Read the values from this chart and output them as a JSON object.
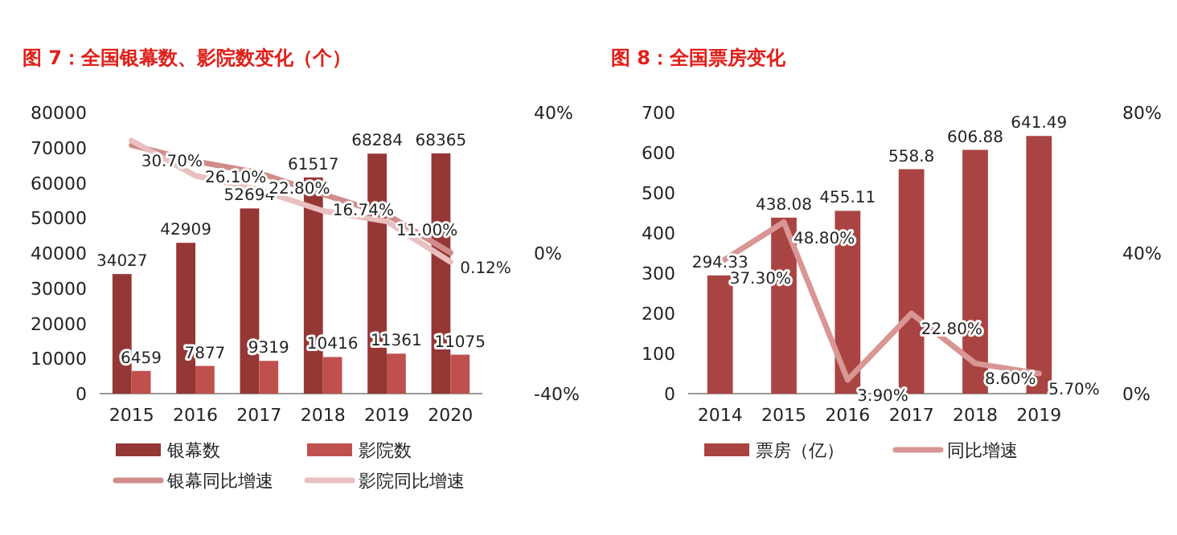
{
  "chart_data": [
    {
      "type": "bar",
      "title": "图 7：全国银幕数、影院数变化（个）",
      "categories": [
        "2015",
        "2016",
        "2017",
        "2018",
        "2019",
        "2020"
      ],
      "ylim": [
        0,
        80000
      ],
      "yticks": [
        0,
        10000,
        20000,
        30000,
        40000,
        50000,
        60000,
        70000,
        80000
      ],
      "y2lim": [
        -40,
        40
      ],
      "y2ticks": [
        {
          "value": -40,
          "label": "-40%"
        },
        {
          "value": 0,
          "label": "0%"
        },
        {
          "value": 40,
          "label": "40%"
        }
      ],
      "legend": "bottom",
      "grid": false,
      "series": [
        {
          "name": "银幕数",
          "color": "#953735",
          "values": [
            34027,
            42909,
            52694,
            61517,
            68284,
            68365
          ],
          "value_labels": [
            "34027",
            "42909",
            "52694",
            "61517",
            "68284",
            "68365"
          ]
        },
        {
          "name": "影院数",
          "color": "#c0504d",
          "values": [
            6459,
            7877,
            9319,
            10416,
            11361,
            11075
          ],
          "value_labels": [
            "6459",
            "7877",
            "9319",
            "10416",
            "11361",
            "11075"
          ]
        },
        {
          "name": "银幕同比增速",
          "type": "line",
          "axis": "y2",
          "color": "#d08c8a",
          "values": [
            30.7,
            26.1,
            22.8,
            16.74,
            11.0,
            0.12
          ],
          "value_labels": [
            "30.70%",
            "26.10%",
            "22.80%",
            "16.74%",
            "11.00%",
            "0.12%"
          ]
        },
        {
          "name": "影院同比增速",
          "type": "line",
          "axis": "y2",
          "color": "#e8c0bf",
          "values": [
            32,
            22,
            18,
            12,
            9,
            -2.5
          ]
        }
      ]
    },
    {
      "type": "bar",
      "title": "图 8：全国票房变化",
      "categories": [
        "2014",
        "2015",
        "2016",
        "2017",
        "2018",
        "2019"
      ],
      "ylim": [
        0,
        700
      ],
      "yticks": [
        0,
        100,
        200,
        300,
        400,
        500,
        600,
        700
      ],
      "y2lim": [
        0,
        80
      ],
      "y2ticks": [
        {
          "value": 0,
          "label": "0%"
        },
        {
          "value": 40,
          "label": "40%"
        },
        {
          "value": 80,
          "label": "80%"
        }
      ],
      "legend": "bottom",
      "grid": false,
      "series": [
        {
          "name": "票房（亿）",
          "color": "#a94442",
          "values": [
            294.33,
            438.08,
            455.11,
            558.8,
            606.88,
            641.49
          ],
          "value_labels": [
            "294.33",
            "438.08",
            "455.11",
            "558.8",
            "606.88",
            "641.49"
          ]
        },
        {
          "name": "同比增速",
          "type": "line",
          "axis": "y2",
          "color": "#d99694",
          "values": [
            37.3,
            48.8,
            3.9,
            22.8,
            8.6,
            5.7
          ],
          "value_labels": [
            "37.30%",
            "48.80%",
            "3.90%",
            "22.80%",
            "8.60%",
            "5.70%"
          ]
        }
      ]
    }
  ]
}
